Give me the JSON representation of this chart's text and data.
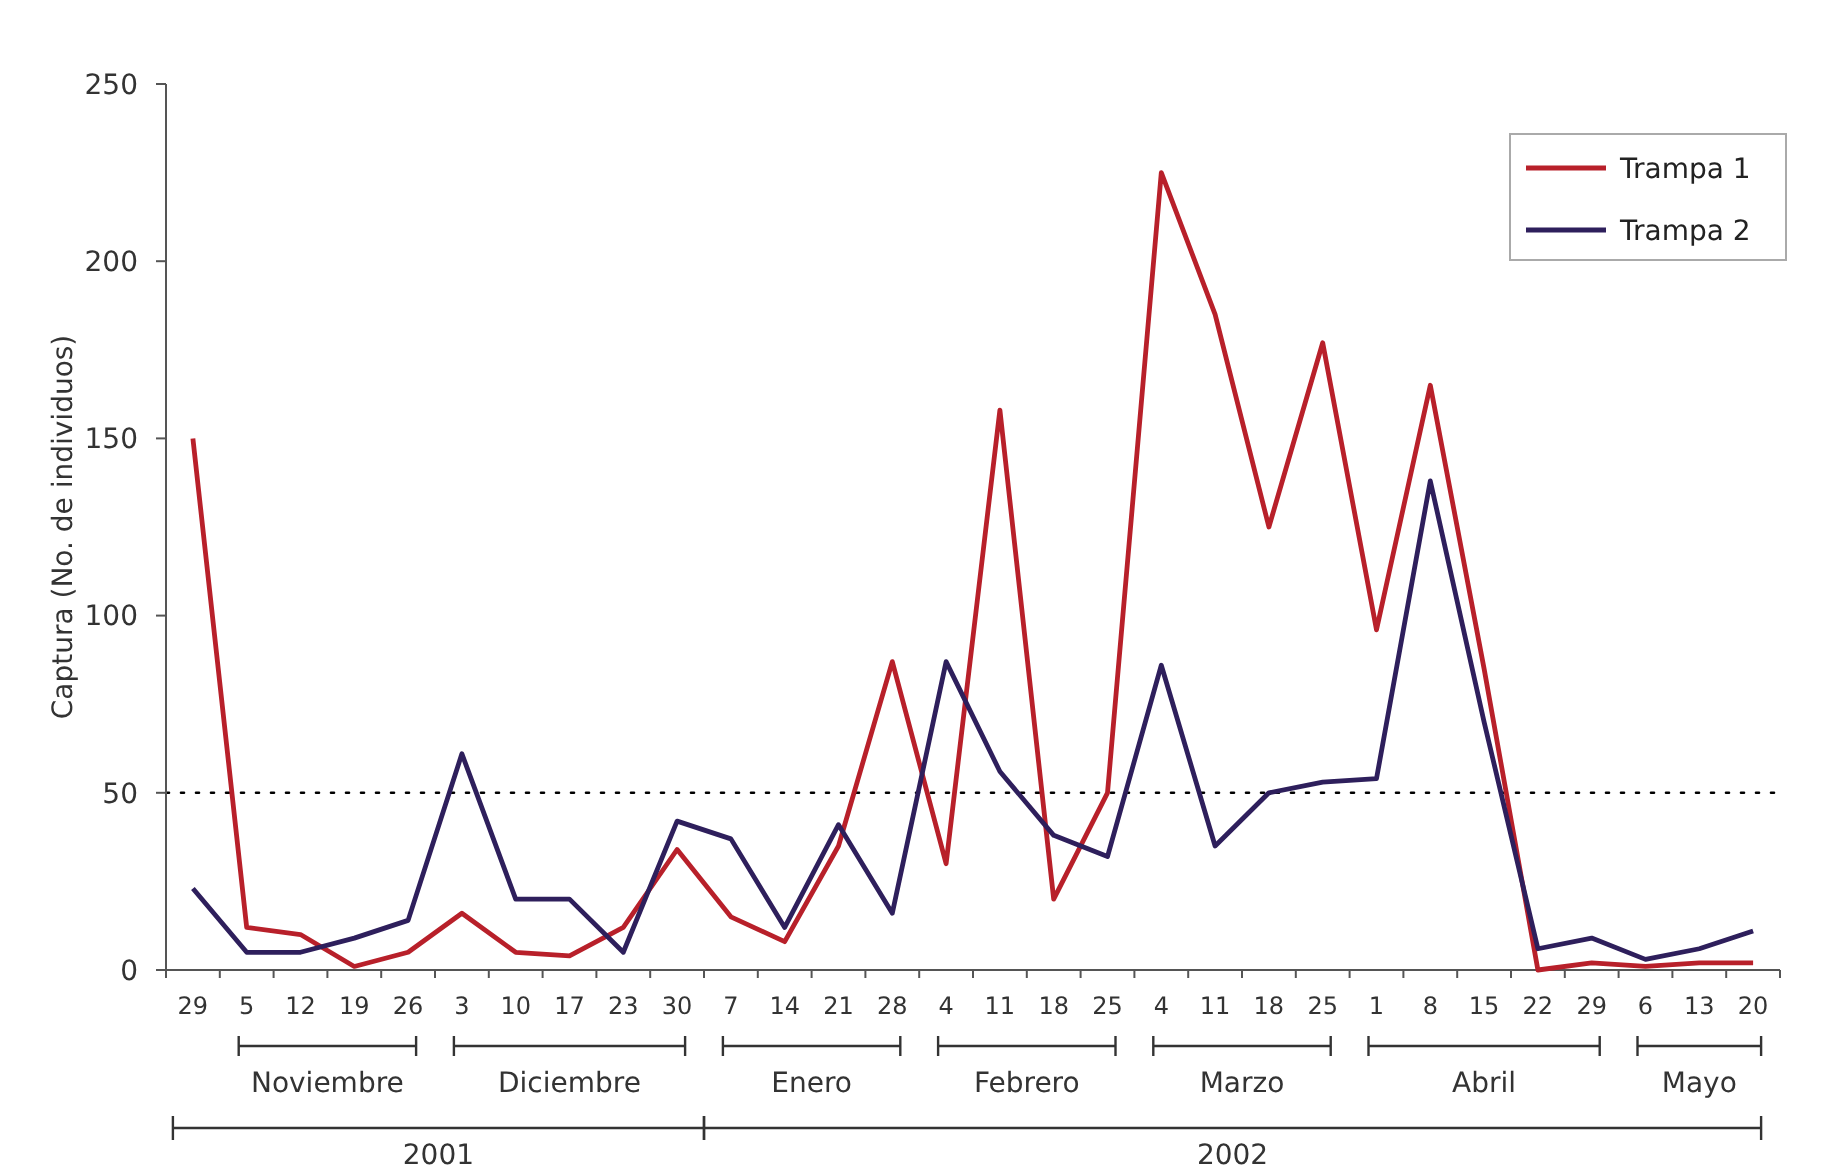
{
  "chart_data": {
    "type": "line",
    "ylabel": "Captura (No. de individuos)",
    "categories": [
      "29",
      "5",
      "12",
      "19",
      "26",
      "3",
      "10",
      "17",
      "23",
      "30",
      "7",
      "14",
      "21",
      "28",
      "4",
      "11",
      "18",
      "25",
      "4",
      "11",
      "18",
      "25",
      "1",
      "8",
      "15",
      "22",
      "29",
      "6",
      "13",
      "20"
    ],
    "series": [
      {
        "name": "Trampa 1",
        "color": "#b8202a",
        "values": [
          150,
          12,
          10,
          1,
          5,
          16,
          5,
          4,
          12,
          34,
          15,
          8,
          35,
          87,
          30,
          158,
          20,
          50,
          225,
          185,
          125,
          177,
          96,
          165,
          85,
          0,
          2,
          1,
          2,
          2
        ]
      },
      {
        "name": "Trampa 2",
        "color": "#2e1f5c",
        "values": [
          23,
          5,
          5,
          9,
          14,
          61,
          20,
          20,
          5,
          42,
          37,
          12,
          41,
          16,
          87,
          56,
          38,
          32,
          86,
          35,
          50,
          53,
          54,
          138,
          70,
          6,
          9,
          3,
          6,
          11
        ]
      }
    ],
    "ylim": [
      0,
      250
    ],
    "yticks": [
      0,
      50,
      100,
      150,
      200,
      250
    ],
    "grid": false,
    "legend": "top right",
    "marker": "none",
    "line_style": "solid",
    "ref_lines": [
      {
        "axis": "y",
        "value": 50,
        "label": null,
        "color": "#000000",
        "line_style": "dotted"
      }
    ],
    "annotations": [
      "Noviembre",
      "Diciembre",
      "Enero",
      "Febrero",
      "Marzo",
      "Abril",
      "Mayo",
      "2001",
      "2002"
    ]
  }
}
